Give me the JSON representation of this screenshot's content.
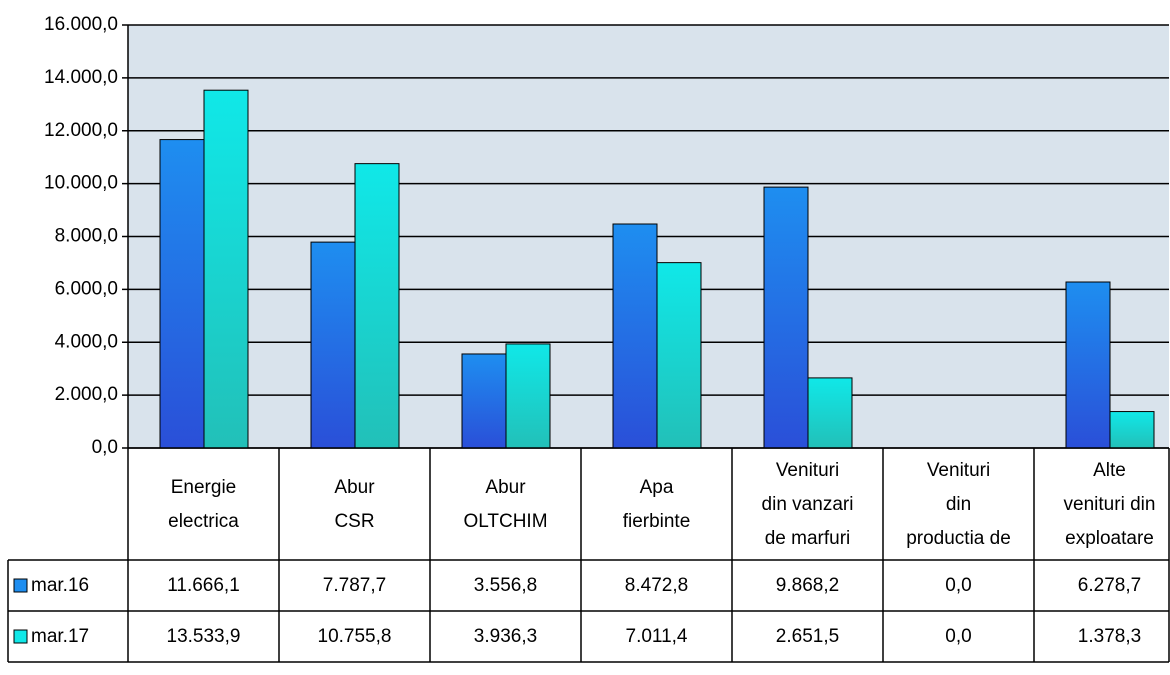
{
  "chart_data": {
    "type": "bar",
    "categories": [
      [
        "Energie",
        "electrica"
      ],
      [
        "Abur",
        "CSR"
      ],
      [
        "Abur",
        "OLTCHIM"
      ],
      [
        "Apa",
        "fierbinte"
      ],
      [
        "Venituri",
        "din vanzari",
        "de marfuri"
      ],
      [
        "Venituri",
        "din",
        "productia de"
      ],
      [
        "Alte",
        "venituri din",
        "exploatare"
      ]
    ],
    "series": [
      {
        "name": "mar.16",
        "color": "#1e8ef0",
        "values": [
          11666.1,
          7787.7,
          3556.8,
          8472.8,
          9868.2,
          0.0,
          6278.7
        ],
        "value_labels": [
          "11.666,1",
          "7.787,7",
          "3.556,8",
          "8.472,8",
          "9.868,2",
          "0,0",
          "6.278,7"
        ]
      },
      {
        "name": "mar.17",
        "color": "#10e8e8",
        "values": [
          13533.9,
          10755.8,
          3936.3,
          7011.4,
          2651.5,
          0.0,
          1378.3
        ],
        "value_labels": [
          "13.533,9",
          "10.755,8",
          "3.936,3",
          "7.011,4",
          "2.651,5",
          "0,0",
          "1.378,3"
        ]
      }
    ],
    "ylim": [
      0,
      16000
    ],
    "yticks": [
      {
        "value": 0,
        "label": "0,0"
      },
      {
        "value": 2000,
        "label": "2.000,0"
      },
      {
        "value": 4000,
        "label": "4.000,0"
      },
      {
        "value": 6000,
        "label": "6.000,0"
      },
      {
        "value": 8000,
        "label": "8.000,0"
      },
      {
        "value": 10000,
        "label": "10.000,0"
      },
      {
        "value": 12000,
        "label": "12.000,0"
      },
      {
        "value": 14000,
        "label": "14.000,0"
      },
      {
        "value": 16000,
        "label": "16.000,0"
      }
    ],
    "grid": true
  }
}
